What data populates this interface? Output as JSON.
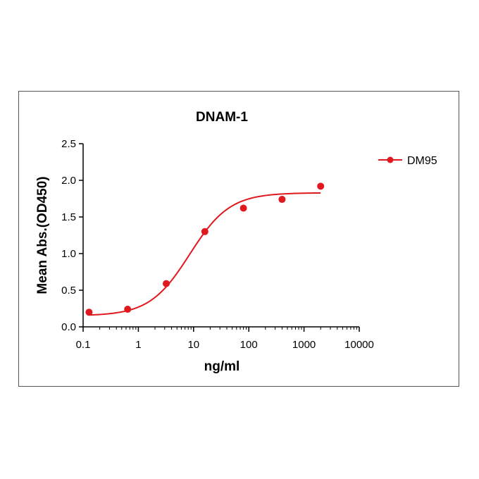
{
  "chart_data": {
    "type": "scatter",
    "title": "DNAM-1",
    "xlabel": "ng/ml",
    "ylabel": "Mean Abs.(OD450)",
    "xscale": "log",
    "xlim": [
      0.1,
      10000
    ],
    "ylim": [
      0,
      2.5
    ],
    "xticks": [
      "0.1",
      "1",
      "10",
      "100",
      "1000",
      "10000"
    ],
    "yticks": [
      "0.0",
      "0.5",
      "1.0",
      "1.5",
      "2.0",
      "2.5"
    ],
    "legend_position": "top-right",
    "grid": false,
    "series": [
      {
        "name": "DM95",
        "color": "#e0191f",
        "points": [
          {
            "x": 0.128,
            "y": 0.2
          },
          {
            "x": 0.64,
            "y": 0.24
          },
          {
            "x": 3.2,
            "y": 0.59
          },
          {
            "x": 16,
            "y": 1.3
          },
          {
            "x": 80,
            "y": 1.62
          },
          {
            "x": 400,
            "y": 1.74
          },
          {
            "x": 2000,
            "y": 1.92
          }
        ],
        "fit": {
          "model": "4PL",
          "bottom": 0.15,
          "top": 1.83,
          "ec50": 8.5,
          "hill": 1.2
        }
      }
    ]
  }
}
